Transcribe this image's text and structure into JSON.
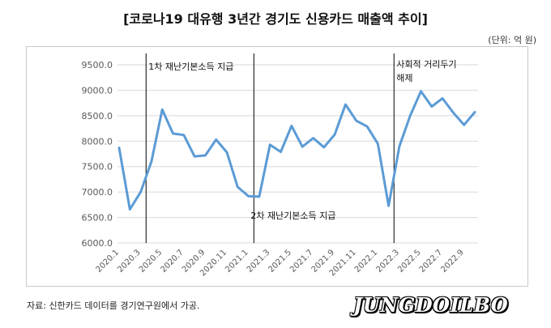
{
  "header": {
    "title": "[코로나19 대유행 3년간 경기도 신용카드 매출액 추이]",
    "unit": "(단위: 억 원)"
  },
  "footer": {
    "source": "자료: 신한카드 데이터를 경기연구원에서 가공.",
    "logo": "JUNGDOILBO"
  },
  "chart_data": {
    "type": "line",
    "title": "",
    "xlabel": "",
    "ylabel": "",
    "ylim": [
      6000,
      9500
    ],
    "yticks": [
      "6000.0",
      "6500.0",
      "7000.0",
      "7500.0",
      "8000.0",
      "8500.0",
      "9000.0",
      "9500.0"
    ],
    "grid": true,
    "legend": "none",
    "color": "#5b9bd5",
    "x": [
      "2020.1",
      "2020.2",
      "2020.3",
      "2020.4",
      "2020.5",
      "2020.6",
      "2020.7",
      "2020.8",
      "2020.9",
      "2020.10",
      "2020.11",
      "2020.12",
      "2021.1",
      "2021.2",
      "2021.3",
      "2021.4",
      "2021.5",
      "2021.6",
      "2021.7",
      "2021.8",
      "2021.9",
      "2021.10",
      "2021.11",
      "2021.12",
      "2022.1",
      "2022.2",
      "2022.3",
      "2022.4",
      "2022.5",
      "2022.6",
      "2022.7",
      "2022.8",
      "2022.9",
      "2022.10"
    ],
    "xticks_shown": [
      "2020.1",
      "2020.3",
      "2020.5",
      "2020.7",
      "2020.9",
      "2020.11",
      "2021.1",
      "2021.3",
      "2021.5",
      "2021.7",
      "2021.9",
      "2021.11",
      "2022.1",
      "2022.3",
      "2022.5",
      "2022.7",
      "2022.9"
    ],
    "series": [
      {
        "values": [
          7870,
          6660,
          7000,
          7600,
          8620,
          8150,
          8120,
          7700,
          7720,
          8030,
          7780,
          7100,
          6920,
          6910,
          7930,
          7790,
          8300,
          7890,
          8060,
          7880,
          8130,
          8720,
          8400,
          8290,
          7950,
          6730,
          7900,
          8500,
          8980,
          8680,
          8840,
          8560,
          8320,
          8570
        ]
      }
    ],
    "annotations": [
      {
        "text": "1차 재난기본소득 지급",
        "x": "2020.4",
        "anchor": "top"
      },
      {
        "text": "2차 재난기본소득 지급",
        "x": "2021.1",
        "anchor": "bottom"
      },
      {
        "text": "사회적 거리두기",
        "x": "2022.3",
        "anchor": "top"
      },
      {
        "text": "해제",
        "x": "2022.3",
        "anchor": "top-second-line"
      }
    ]
  }
}
